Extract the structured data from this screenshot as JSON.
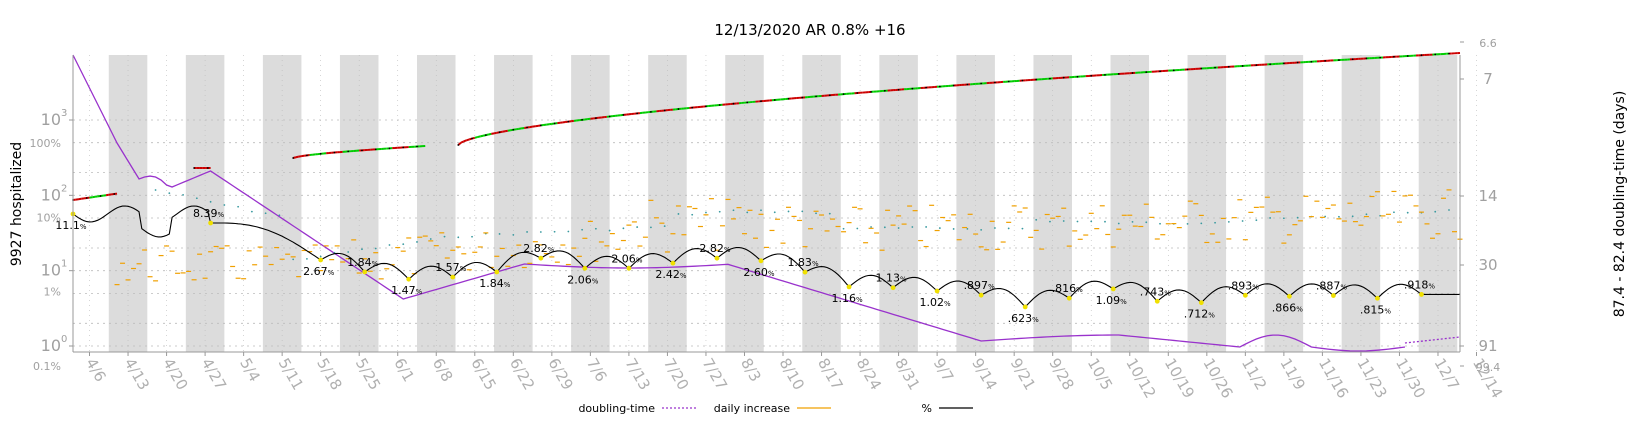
{
  "chart_data": {
    "type": "line",
    "title": "12/13/2020 AR 0.8% +16",
    "ylabel_left": "9927 hospitalized",
    "ylabel_right": "87.4 - 82.4 doubling-time (days)",
    "x_ticks": [
      "4/6",
      "4/13",
      "4/20",
      "4/27",
      "5/4",
      "5/11",
      "5/18",
      "5/25",
      "6/1",
      "6/8",
      "6/15",
      "6/22",
      "6/29",
      "7/6",
      "7/13",
      "7/20",
      "7/27",
      "8/3",
      "8/10",
      "8/17",
      "8/24",
      "8/31",
      "9/7",
      "9/14",
      "9/21",
      "9/28",
      "10/5",
      "10/12",
      "10/19",
      "10/26",
      "11/2",
      "11/9",
      "11/16",
      "11/23",
      "11/30",
      "12/7",
      "12/14"
    ],
    "y_left_ticks": [
      {
        "label": "10",
        "exp": "0",
        "value": 1
      },
      {
        "label": "10",
        "exp": "1",
        "value": 10
      },
      {
        "label": "10",
        "exp": "2",
        "value": 100
      },
      {
        "label": "10",
        "exp": "3",
        "value": 1000
      }
    ],
    "y_pct_ticks": [
      {
        "label": "0.1%",
        "value": 0.1
      },
      {
        "label": "1%",
        "value": 1
      },
      {
        "label": "10%",
        "value": 10
      },
      {
        "label": "100%",
        "value": 100
      }
    ],
    "y_right_ticks": [
      {
        "label": "6.6",
        "value": 6.6
      },
      {
        "label": "7",
        "value": 7
      },
      {
        "label": "14",
        "value": 14
      },
      {
        "label": "30",
        "value": 30
      },
      {
        "label": "91",
        "value": 91
      },
      {
        "label": "99.4",
        "value": 99.4
      }
    ],
    "pct_annotations": [
      {
        "x": 0,
        "value": "11.1",
        "pct": 11.1
      },
      {
        "x": 25,
        "value": "8.39",
        "pct": 8.39
      },
      {
        "x": 45,
        "value": "2.67",
        "pct": 2.67
      },
      {
        "x": 53,
        "value": "1.84",
        "pct": 1.84
      },
      {
        "x": 61,
        "value": "1.47",
        "pct": 1.47
      },
      {
        "x": 69,
        "value": "1.57",
        "pct": 1.57
      },
      {
        "x": 77,
        "value": "1.84",
        "pct": 1.84
      },
      {
        "x": 85,
        "value": "2.82",
        "pct": 2.82
      },
      {
        "x": 93,
        "value": "2.06",
        "pct": 2.06
      },
      {
        "x": 101,
        "value": "2.06",
        "pct": 2.06
      },
      {
        "x": 109,
        "value": "2.42",
        "pct": 2.42
      },
      {
        "x": 117,
        "value": "2.82",
        "pct": 2.82
      },
      {
        "x": 125,
        "value": "2.60",
        "pct": 2.6
      },
      {
        "x": 133,
        "value": "1.83",
        "pct": 1.83
      },
      {
        "x": 141,
        "value": "1.16",
        "pct": 1.16
      },
      {
        "x": 149,
        "value": "1.13",
        "pct": 1.13
      },
      {
        "x": 157,
        "value": "1.02",
        "pct": 1.02
      },
      {
        "x": 165,
        "value": ".897",
        "pct": 0.897
      },
      {
        "x": 173,
        "value": ".623",
        "pct": 0.623
      },
      {
        "x": 181,
        "value": ".816",
        "pct": 0.816
      },
      {
        "x": 189,
        "value": "1.09",
        "pct": 1.09
      },
      {
        "x": 197,
        "value": ".743",
        "pct": 0.743
      },
      {
        "x": 205,
        "value": ".712",
        "pct": 0.712
      },
      {
        "x": 213,
        "value": ".893",
        "pct": 0.893
      },
      {
        "x": 221,
        "value": ".866",
        "pct": 0.866
      },
      {
        "x": 229,
        "value": ".887",
        "pct": 0.887
      },
      {
        "x": 237,
        "value": ".815",
        "pct": 0.815
      },
      {
        "x": 245,
        "value": ".918",
        "pct": 0.918
      }
    ],
    "pct_unit": "%",
    "legend": [
      {
        "name": "doubling-time",
        "color": "#9932cc",
        "style": "dotted"
      },
      {
        "name": "daily increase",
        "color": "#f0a000",
        "style": "solid"
      },
      {
        "name": "%",
        "color": "#000000",
        "style": "solid"
      }
    ],
    "colors": {
      "doubling": "#9932cc",
      "daily": "#f0a000",
      "pct": "#000000",
      "hosp_up": "#cc0000",
      "hosp_down": "#00cc00",
      "teal": "#3a9aa0",
      "marker": "#f0e000",
      "band": "#dcdcdc",
      "grid": "#bbbbbb",
      "tick_label": "#b0b0b0"
    }
  }
}
